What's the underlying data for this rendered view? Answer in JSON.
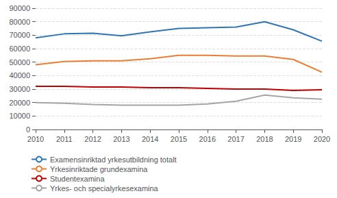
{
  "chart_data": {
    "type": "line",
    "x": [
      2010,
      2011,
      2012,
      2013,
      2014,
      2015,
      2016,
      2017,
      2018,
      2019,
      2020
    ],
    "xlim": [
      2010,
      2020
    ],
    "xticks": [
      2010,
      2011,
      2012,
      2013,
      2014,
      2015,
      2016,
      2017,
      2018,
      2019,
      2020
    ],
    "ylim": [
      0,
      90000
    ],
    "yticks": [
      0,
      10000,
      20000,
      30000,
      40000,
      50000,
      60000,
      70000,
      80000,
      90000
    ],
    "series": [
      {
        "name": "Examensinriktad yrkesutbildning totalt",
        "color": "#2e75b6",
        "values": [
          68000,
          71000,
          71500,
          69500,
          72500,
          75000,
          75500,
          76000,
          80000,
          74000,
          65500
        ]
      },
      {
        "name": "Yrkesinriktade grundexamina",
        "color": "#ed7d31",
        "values": [
          48000,
          50500,
          51000,
          51000,
          52500,
          55000,
          55000,
          54500,
          54500,
          52000,
          42500
        ]
      },
      {
        "name": "Studentexamina",
        "color": "#c00000",
        "values": [
          32000,
          32000,
          31500,
          31500,
          31000,
          31000,
          30500,
          30000,
          30000,
          29000,
          29500
        ]
      },
      {
        "name": "Yrkes- och specialyrkesexamina",
        "color": "#a5a5a5",
        "values": [
          20000,
          19500,
          18500,
          18000,
          18000,
          18000,
          19000,
          21000,
          25500,
          23500,
          22500
        ]
      }
    ],
    "grid": true,
    "legend": "bottom"
  }
}
